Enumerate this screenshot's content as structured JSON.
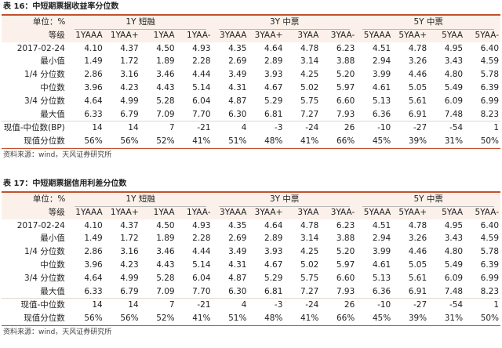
{
  "tables": [
    {
      "caption": "表 16：中短期票据收益率分位数",
      "unit_label": "单位：%",
      "grade_label": "等级",
      "groups": [
        "1Y 短融",
        "3Y 中票",
        "5Y 中票"
      ],
      "columns": [
        "1YAAA",
        "1YAA+",
        "1YAA",
        "1YAA-",
        "3YAAA",
        "3YAA+",
        "3YAA",
        "3YAA-",
        "5YAAA",
        "5YAA+",
        "5YAA",
        "5YAA-"
      ],
      "rows": [
        {
          "label": "2017-02-24",
          "values": [
            "4.10",
            "4.37",
            "4.50",
            "4.93",
            "4.35",
            "4.64",
            "4.78",
            "6.23",
            "4.51",
            "4.78",
            "4.95",
            "6.40"
          ]
        },
        {
          "label": "最小值",
          "values": [
            "1.49",
            "1.72",
            "1.89",
            "2.28",
            "2.69",
            "2.89",
            "3.14",
            "3.88",
            "2.94",
            "3.26",
            "3.43",
            "4.59"
          ]
        },
        {
          "label": "1/4 分位数",
          "values": [
            "2.86",
            "3.16",
            "3.46",
            "4.44",
            "3.49",
            "3.93",
            "4.25",
            "5.20",
            "3.99",
            "4.46",
            "4.80",
            "5.78"
          ]
        },
        {
          "label": "中位数",
          "values": [
            "3.96",
            "4.23",
            "4.43",
            "5.14",
            "4.31",
            "4.67",
            "5.02",
            "5.97",
            "4.61",
            "5.05",
            "5.49",
            "6.39"
          ]
        },
        {
          "label": "3/4 分位数",
          "values": [
            "4.64",
            "4.99",
            "5.28",
            "6.04",
            "4.87",
            "5.29",
            "5.75",
            "6.60",
            "5.13",
            "5.61",
            "6.09",
            "6.99"
          ]
        },
        {
          "label": "最大值",
          "values": [
            "6.33",
            "6.79",
            "7.09",
            "7.70",
            "6.30",
            "6.81",
            "7.27",
            "7.93",
            "6.36",
            "6.91",
            "7.48",
            "8.23"
          ]
        },
        {
          "label": "现值-中位数(BP)",
          "values": [
            "14",
            "14",
            "7",
            "-21",
            "4",
            "-3",
            "-24",
            "26",
            "-10",
            "-27",
            "-54",
            "1"
          ]
        },
        {
          "label": "现值分位数",
          "values": [
            "56%",
            "56%",
            "52%",
            "41%",
            "51%",
            "48%",
            "41%",
            "66%",
            "45%",
            "39%",
            "31%",
            "50%"
          ]
        }
      ],
      "source": "资料来源：wind，天风证券研究所"
    },
    {
      "caption": "表 17：中短期票据信用利差分位数",
      "unit_label": "单位：%",
      "grade_label": "等级",
      "groups": [
        "1Y 短融",
        "3Y 中票",
        "5Y 中票"
      ],
      "columns": [
        "1YAAA",
        "1YAA+",
        "1YAA",
        "1YAA-",
        "3YAAA",
        "3YAA+",
        "3YAA",
        "3YAA-",
        "5YAAA",
        "5YAA+",
        "5YAA",
        "5YAA-"
      ],
      "rows": [
        {
          "label": "2017-02-24",
          "values": [
            "4.10",
            "4.37",
            "4.50",
            "4.93",
            "4.35",
            "4.64",
            "4.78",
            "6.23",
            "4.51",
            "4.78",
            "4.95",
            "6.40"
          ]
        },
        {
          "label": "最小值",
          "values": [
            "1.49",
            "1.72",
            "1.89",
            "2.28",
            "2.69",
            "2.89",
            "3.14",
            "3.88",
            "2.94",
            "3.26",
            "3.43",
            "4.59"
          ]
        },
        {
          "label": "1/4 分位数",
          "values": [
            "2.86",
            "3.16",
            "3.46",
            "4.44",
            "3.49",
            "3.93",
            "4.25",
            "5.20",
            "3.99",
            "4.46",
            "4.80",
            "5.78"
          ]
        },
        {
          "label": "中位数",
          "values": [
            "3.96",
            "4.23",
            "4.43",
            "5.14",
            "4.31",
            "4.67",
            "5.02",
            "5.97",
            "4.61",
            "5.05",
            "5.49",
            "6.39"
          ]
        },
        {
          "label": "3/4 分位数",
          "values": [
            "4.64",
            "4.99",
            "5.28",
            "6.04",
            "4.87",
            "5.29",
            "5.75",
            "6.60",
            "5.13",
            "5.61",
            "6.09",
            "6.99"
          ]
        },
        {
          "label": "最大值",
          "values": [
            "6.33",
            "6.79",
            "7.09",
            "7.70",
            "6.30",
            "6.81",
            "7.27",
            "7.93",
            "6.36",
            "6.91",
            "7.48",
            "8.23"
          ]
        },
        {
          "label": "现值-中位数",
          "values": [
            "14",
            "14",
            "7",
            "-21",
            "4",
            "-3",
            "-24",
            "26",
            "-10",
            "-27",
            "-54",
            "1"
          ]
        },
        {
          "label": "现值分位数",
          "values": [
            "56%",
            "56%",
            "52%",
            "41%",
            "51%",
            "48%",
            "41%",
            "66%",
            "45%",
            "39%",
            "31%",
            "50%"
          ]
        }
      ],
      "source": "资料来源：wind，天风证券研究所"
    }
  ]
}
